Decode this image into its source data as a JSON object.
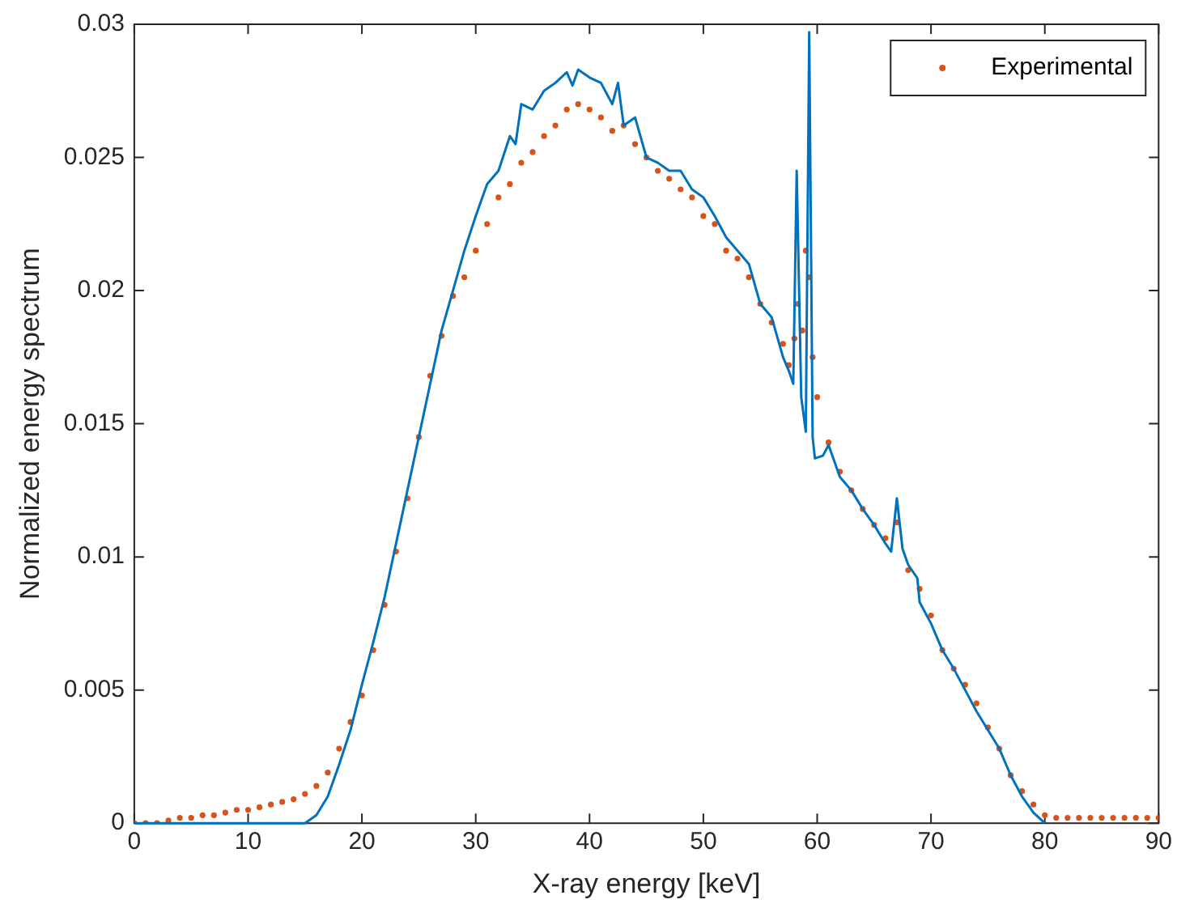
{
  "chart_data": {
    "type": "line",
    "xlabel": "X-ray energy [keV]",
    "ylabel": "Normalized energy spectrum",
    "xlim": [
      0,
      90
    ],
    "ylim": [
      0,
      0.03
    ],
    "xticks": [
      0,
      10,
      20,
      30,
      40,
      50,
      60,
      70,
      80,
      90
    ],
    "yticks": [
      0,
      0.005,
      0.01,
      0.015,
      0.02,
      0.025,
      0.03
    ],
    "grid": false,
    "legend": "top right",
    "series": [
      {
        "color": "#0072bd",
        "x": [
          0,
          15,
          16,
          17,
          18,
          19,
          20,
          21,
          22,
          23,
          24,
          25,
          26,
          27,
          28,
          29,
          30,
          31,
          32,
          33,
          33.5,
          34,
          35,
          36,
          37,
          38,
          38.5,
          39,
          40,
          41,
          42,
          42.5,
          43,
          44,
          45,
          46,
          47,
          48,
          49,
          50,
          51,
          52,
          53,
          54,
          55,
          56,
          57,
          57.5,
          57.9,
          58.2,
          58.6,
          59,
          59.3,
          59.6,
          59.8,
          60.5,
          61,
          62,
          63,
          64,
          65,
          66,
          66.5,
          67,
          67.5,
          68,
          68.8,
          69,
          70,
          71,
          72,
          73,
          74,
          75,
          76,
          77,
          78,
          79,
          80
        ],
        "values": [
          0,
          0,
          0.0003,
          0.001,
          0.0022,
          0.0035,
          0.0052,
          0.0068,
          0.0085,
          0.0105,
          0.0125,
          0.0145,
          0.0165,
          0.0185,
          0.02,
          0.0215,
          0.0228,
          0.024,
          0.0245,
          0.0258,
          0.0255,
          0.027,
          0.0268,
          0.0275,
          0.0278,
          0.0282,
          0.0277,
          0.0283,
          0.028,
          0.0278,
          0.027,
          0.0278,
          0.0262,
          0.0265,
          0.025,
          0.0248,
          0.0245,
          0.0245,
          0.0238,
          0.0235,
          0.0228,
          0.022,
          0.0215,
          0.021,
          0.0195,
          0.019,
          0.0175,
          0.017,
          0.0165,
          0.0245,
          0.016,
          0.0147,
          0.0297,
          0.0145,
          0.0137,
          0.0138,
          0.0142,
          0.013,
          0.0125,
          0.0118,
          0.0112,
          0.0105,
          0.0102,
          0.0122,
          0.0103,
          0.0097,
          0.0092,
          0.0083,
          0.0075,
          0.0065,
          0.0058,
          0.005,
          0.0042,
          0.0035,
          0.0028,
          0.0018,
          0.001,
          0.0004,
          0
        ]
      },
      {
        "type": "scatter",
        "marker": "circle",
        "name": "Experimental",
        "color": "#d95319",
        "x": [
          0,
          1,
          2,
          3,
          4,
          5,
          6,
          7,
          8,
          9,
          10,
          11,
          12,
          13,
          14,
          15,
          16,
          17,
          18,
          19,
          20,
          21,
          22,
          23,
          24,
          25,
          26,
          27,
          28,
          29,
          30,
          31,
          32,
          33,
          34,
          35,
          36,
          37,
          38,
          39,
          40,
          41,
          42,
          43,
          44,
          45,
          46,
          47,
          48,
          49,
          50,
          51,
          52,
          53,
          54,
          55,
          56,
          57,
          57.5,
          58,
          58.3,
          58.7,
          59,
          59.3,
          59.6,
          60,
          61,
          62,
          63,
          64,
          65,
          66,
          67,
          68,
          69,
          70,
          71,
          72,
          73,
          74,
          75,
          76,
          77,
          78,
          79,
          80,
          81,
          82,
          83,
          84,
          85,
          86,
          87,
          88,
          89,
          90
        ],
        "values": [
          0,
          0,
          0,
          0.0001,
          0.0002,
          0.0002,
          0.0003,
          0.0003,
          0.0004,
          0.0005,
          0.0005,
          0.0006,
          0.0007,
          0.0008,
          0.0009,
          0.0011,
          0.0014,
          0.0019,
          0.0028,
          0.0038,
          0.0048,
          0.0065,
          0.0082,
          0.0102,
          0.0122,
          0.0145,
          0.0168,
          0.0183,
          0.0198,
          0.0205,
          0.0215,
          0.0225,
          0.0235,
          0.024,
          0.0248,
          0.0252,
          0.0258,
          0.0262,
          0.0268,
          0.027,
          0.0268,
          0.0265,
          0.026,
          0.0262,
          0.0255,
          0.025,
          0.0245,
          0.0242,
          0.0238,
          0.0235,
          0.0228,
          0.0225,
          0.0215,
          0.0212,
          0.0205,
          0.0195,
          0.0188,
          0.018,
          0.0172,
          0.0182,
          0.0195,
          0.0185,
          0.0215,
          0.0205,
          0.0175,
          0.016,
          0.0143,
          0.0132,
          0.0125,
          0.0118,
          0.0112,
          0.0107,
          0.0113,
          0.0095,
          0.0088,
          0.0078,
          0.0065,
          0.0058,
          0.0052,
          0.0045,
          0.0036,
          0.0028,
          0.0018,
          0.0012,
          0.0007,
          0.0003,
          0.0002,
          0.0002,
          0.0002,
          0.0002,
          0.0002,
          0.0002,
          0.0002,
          0.0002,
          0.0002,
          0.0002
        ]
      }
    ]
  }
}
